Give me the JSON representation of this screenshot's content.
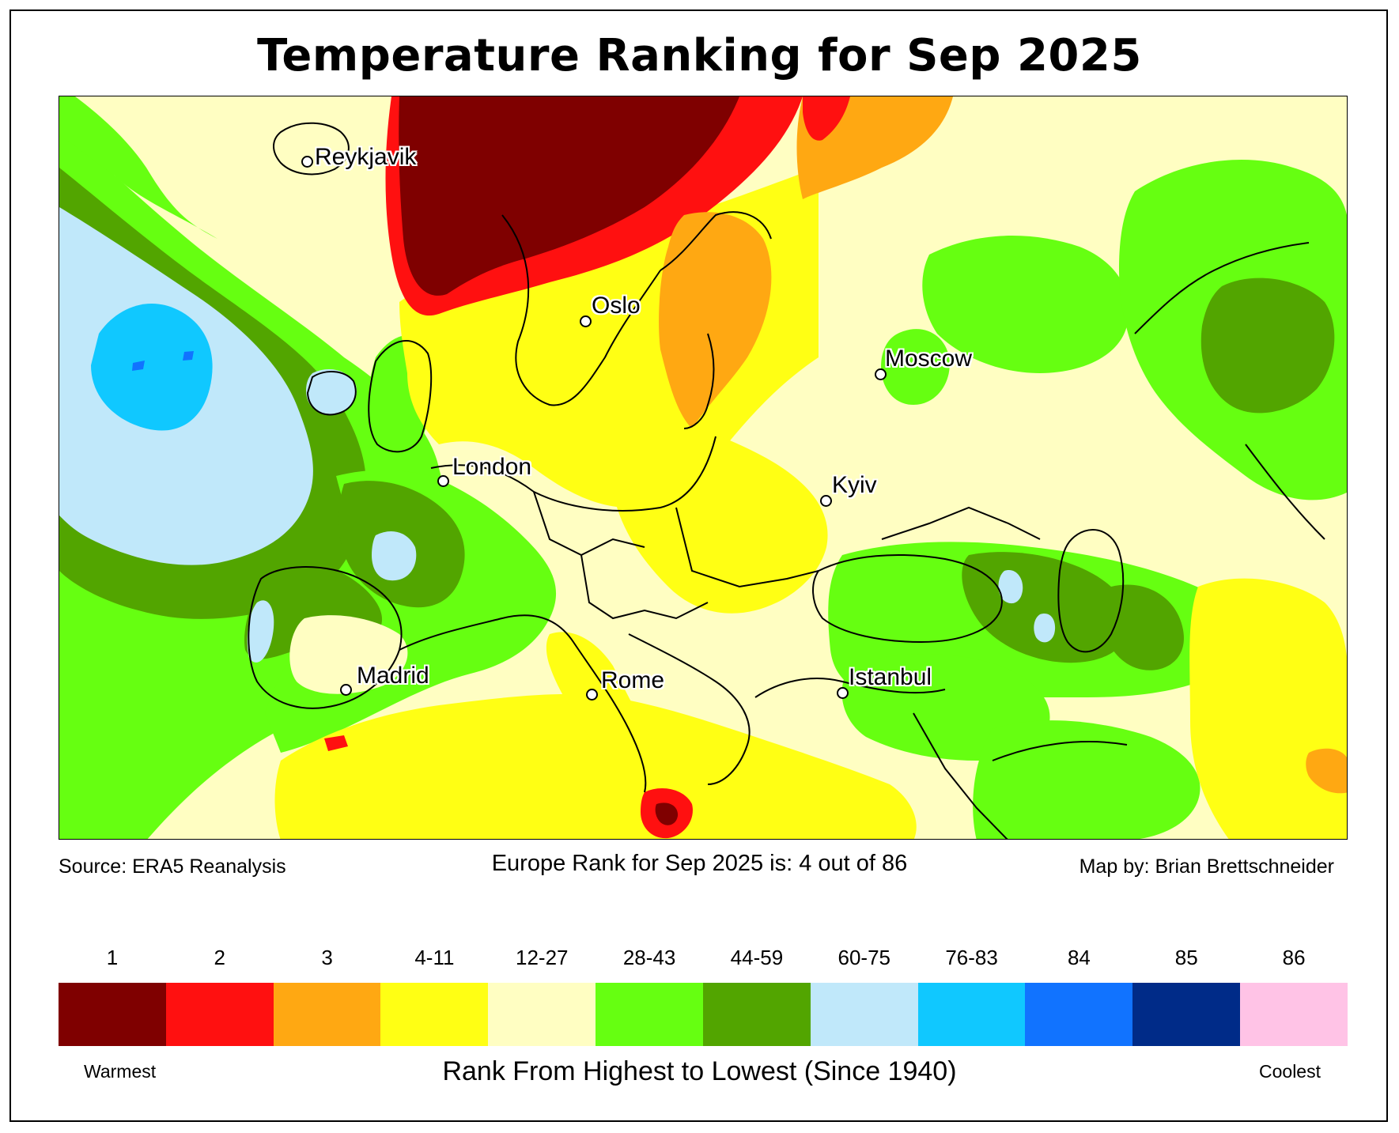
{
  "title": "Temperature Ranking for Sep 2025",
  "map": {
    "region": "Europe",
    "cities": [
      {
        "name": "Reykjavik"
      },
      {
        "name": "Oslo"
      },
      {
        "name": "Moscow"
      },
      {
        "name": "London"
      },
      {
        "name": "Kyiv"
      },
      {
        "name": "Madrid"
      },
      {
        "name": "Rome"
      },
      {
        "name": "Istanbul"
      }
    ]
  },
  "footer": {
    "source": "Source: ERA5 Reanalysis",
    "rank_text": "Europe Rank for Sep 2025 is: 4 out of 86",
    "byline": "Map by: Brian Brettschneider"
  },
  "legend": {
    "title": "Rank From Highest to Lowest (Since 1940)",
    "warm_label": "Warmest",
    "cool_label": "Coolest",
    "classes": [
      {
        "label": "1",
        "color": "#7f0000"
      },
      {
        "label": "2",
        "color": "#ff1010"
      },
      {
        "label": "3",
        "color": "#ffa812"
      },
      {
        "label": "4-11",
        "color": "#ffff14"
      },
      {
        "label": "12-27",
        "color": "#fffec2"
      },
      {
        "label": "28-43",
        "color": "#66ff11"
      },
      {
        "label": "44-59",
        "color": "#52a500"
      },
      {
        "label": "60-75",
        "color": "#c0e8fa"
      },
      {
        "label": "76-83",
        "color": "#10c8ff"
      },
      {
        "label": "84",
        "color": "#1173ff"
      },
      {
        "label": "85",
        "color": "#002b88"
      },
      {
        "label": "86",
        "color": "#ffc3e6"
      }
    ]
  }
}
